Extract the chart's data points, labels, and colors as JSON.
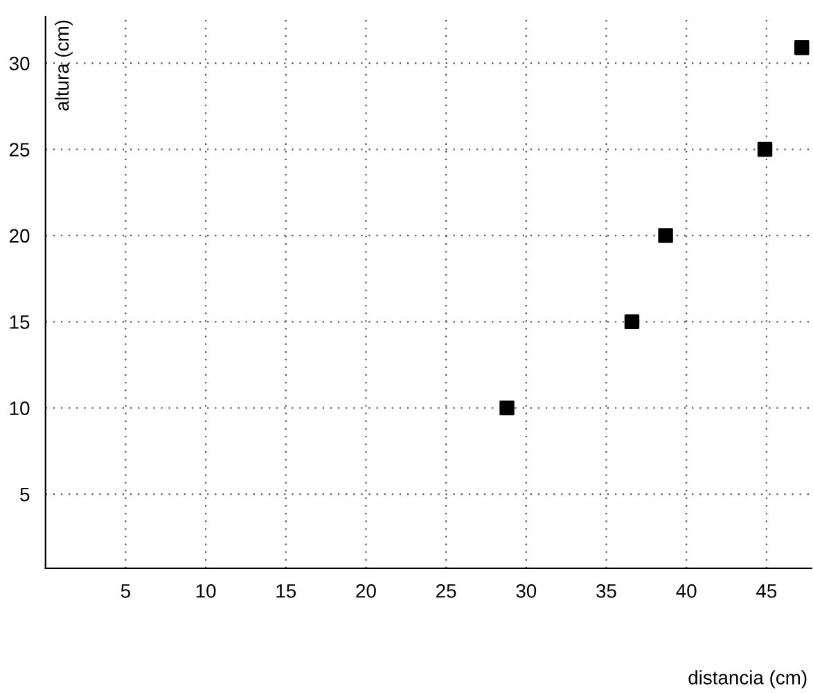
{
  "chart_data": {
    "type": "scatter",
    "xlabel": "distancia (cm)",
    "ylabel": "altura (cm)",
    "x": [
      28.8,
      36.6,
      38.7,
      44.9,
      47.2
    ],
    "values": [
      10,
      15,
      20,
      25,
      30.9
    ],
    "color": "#000000",
    "marker": "square",
    "xlim": [
      0,
      47.8
    ],
    "ylim": [
      0.7,
      32.7
    ],
    "xticks": [
      5,
      10,
      15,
      20,
      25,
      30,
      35,
      40,
      45
    ],
    "yticks": [
      5,
      10,
      15,
      20,
      25,
      30
    ],
    "grid": true
  }
}
